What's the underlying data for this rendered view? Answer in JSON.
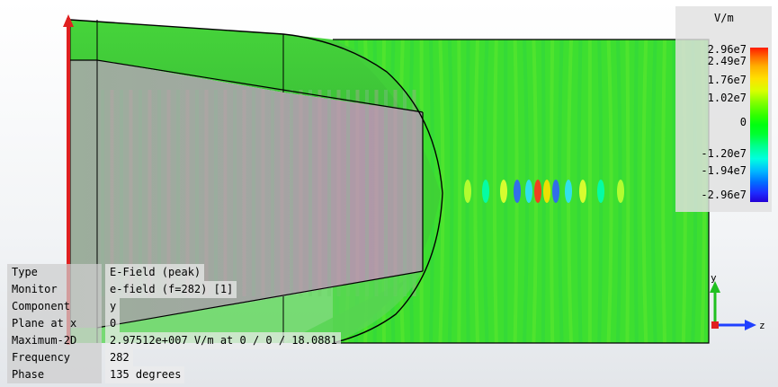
{
  "legend": {
    "unit": "V/m",
    "labels": [
      "2.96e7",
      "2.49e7",
      "1.76e7",
      "1.02e7",
      "0",
      "-1.20e7",
      "-1.94e7",
      "-2.96e7"
    ]
  },
  "info": [
    {
      "key": "Type",
      "value": "E-Field (peak)"
    },
    {
      "key": "Monitor",
      "value": "e-field (f=282) [1]"
    },
    {
      "key": "Component",
      "value": "y"
    },
    {
      "key": "Plane at x",
      "value": "0"
    },
    {
      "key": "Maximum-2D",
      "value": "2.97512e+007 V/m at 0 / 0 / 18.0881"
    },
    {
      "key": "Frequency",
      "value": "282"
    },
    {
      "key": "Phase",
      "value": "135 degrees"
    }
  ],
  "axes": {
    "y_label": "y",
    "z_label": "z"
  },
  "colors": {
    "field_background": "#3ddf30",
    "field_max": "#ff2000",
    "field_min": "#2010ff",
    "outline": "#000000",
    "port": "#e02020",
    "axis_y": "#20c020",
    "axis_z": "#2040ff"
  }
}
